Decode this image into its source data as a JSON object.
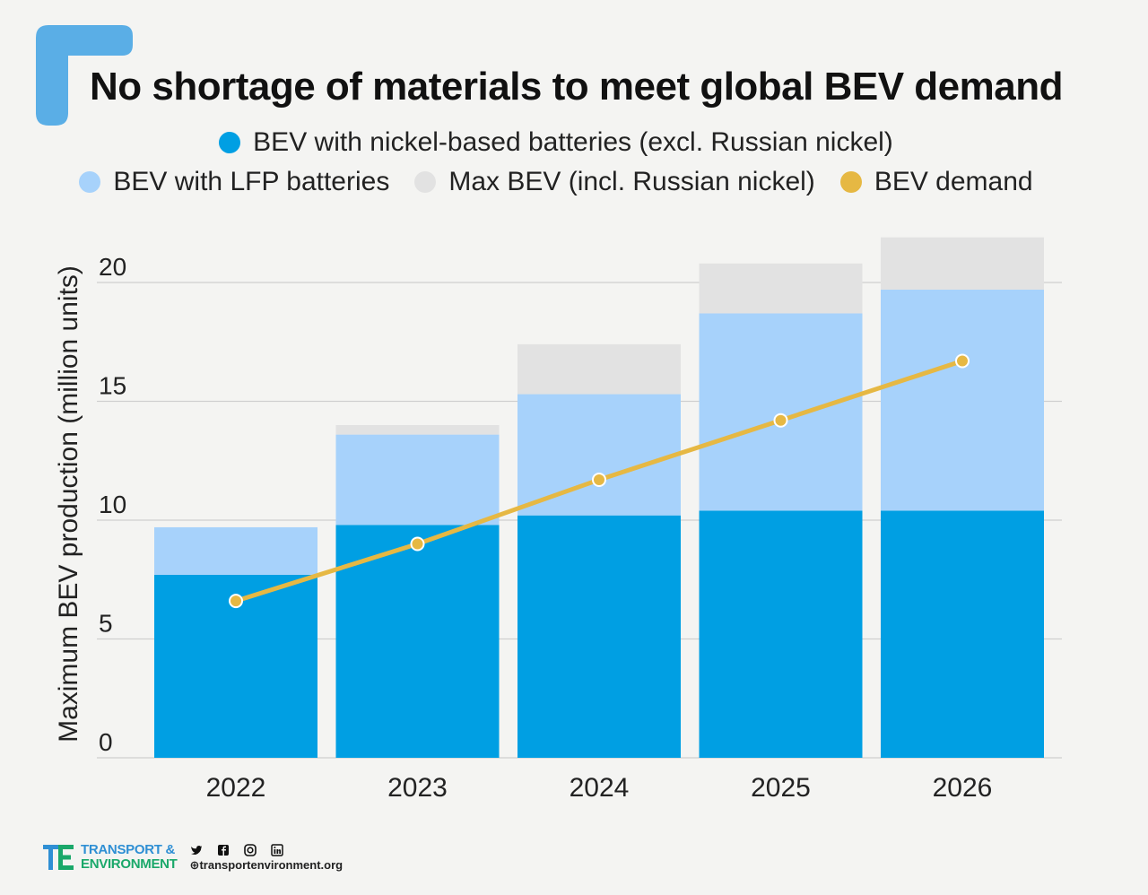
{
  "title": "No shortage of materials to meet global BEV demand",
  "colors": {
    "nickel": "#009fe3",
    "lfp": "#a7d2fb",
    "max": "#e2e2e2",
    "demand": "#e6b843",
    "accent": "#5aaee6",
    "background": "#f4f4f2"
  },
  "chart_data": {
    "type": "bar",
    "stacked": true,
    "categories": [
      "2022",
      "2023",
      "2024",
      "2025",
      "2026"
    ],
    "ylabel": "Maximum BEV production (million units)",
    "xlabel": "",
    "ylim": [
      0,
      22
    ],
    "yticks": [
      0,
      5,
      10,
      15,
      20
    ],
    "grid": true,
    "legend_position": "top",
    "series": [
      {
        "name": "BEV with nickel-based batteries (excl. Russian nickel)",
        "type": "bar",
        "values": [
          7.7,
          9.8,
          10.2,
          10.4,
          10.4
        ]
      },
      {
        "name": "BEV with LFP batteries",
        "type": "bar",
        "values": [
          2.0,
          3.8,
          5.1,
          8.3,
          9.3
        ]
      },
      {
        "name": "Max BEV (incl. Russian nickel)",
        "type": "bar",
        "values": [
          0.0,
          0.4,
          2.1,
          2.1,
          2.2
        ]
      },
      {
        "name": "BEV demand",
        "type": "line",
        "values": [
          6.6,
          9.0,
          11.7,
          14.2,
          16.7
        ]
      }
    ]
  },
  "footer": {
    "brand_line1": "TRANSPORT &",
    "brand_line2": "ENVIRONMENT",
    "website": "transportenvironment.org"
  }
}
